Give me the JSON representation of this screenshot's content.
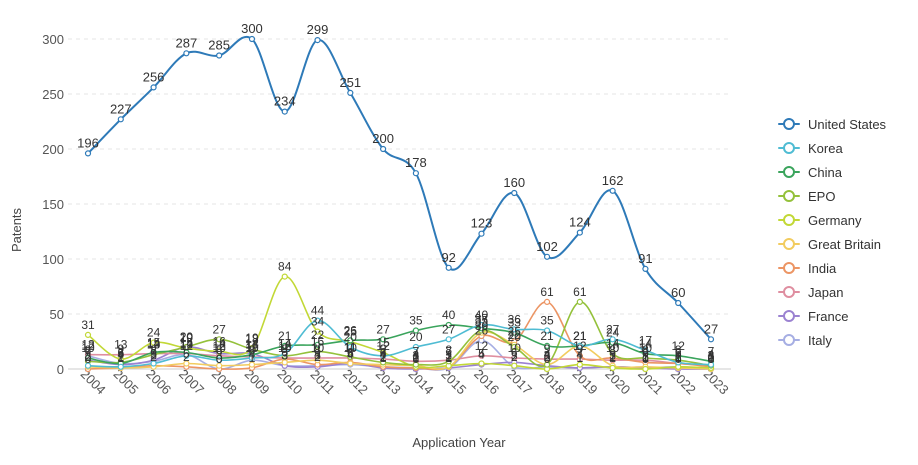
{
  "chart_data": {
    "type": "line",
    "xlabel": "Application Year",
    "ylabel": "Patents",
    "ylim": [
      0,
      300
    ],
    "yticks": [
      0,
      50,
      100,
      150,
      200,
      250,
      300
    ],
    "grid": "horizontal dashed",
    "legend_position": "right",
    "categories": [
      "2004",
      "2005",
      "2006",
      "2007",
      "2008",
      "2009",
      "2010",
      "2011",
      "2012",
      "2013",
      "2014",
      "2015",
      "2016",
      "2017",
      "2018",
      "2019",
      "2020",
      "2021",
      "2022",
      "2023"
    ],
    "series": [
      {
        "name": "United States",
        "color": "#2e7ab8",
        "values": [
          196,
          227,
          256,
          287,
          285,
          300,
          234,
          299,
          251,
          200,
          178,
          92,
          123,
          160,
          102,
          124,
          162,
          91,
          60,
          27
        ]
      },
      {
        "name": "Korea",
        "color": "#4fbcd3",
        "values": [
          3,
          2,
          5,
          12,
          8,
          10,
          14,
          44,
          20,
          12,
          20,
          27,
          40,
          36,
          35,
          21,
          27,
          17,
          6,
          4
        ]
      },
      {
        "name": "China",
        "color": "#3aa45c",
        "values": [
          10,
          5,
          15,
          15,
          10,
          13,
          21,
          22,
          26,
          27,
          35,
          40,
          37,
          33,
          21,
          21,
          24,
          14,
          12,
          7
        ]
      },
      {
        "name": "EPO",
        "color": "#94c13b",
        "values": [
          7,
          6,
          13,
          20,
          27,
          18,
          12,
          16,
          11,
          6,
          4,
          7,
          35,
          20,
          4,
          61,
          14,
          10,
          8,
          3
        ]
      },
      {
        "name": "Germany",
        "color": "#c2d836",
        "values": [
          31,
          9,
          24,
          19,
          16,
          19,
          84,
          34,
          25,
          15,
          2,
          3,
          5,
          3,
          0,
          4,
          1,
          0,
          2,
          1
        ]
      },
      {
        "name": "Great Britain",
        "color": "#f2cc5f",
        "values": [
          2,
          1,
          2,
          5,
          3,
          4,
          6,
          8,
          5,
          4,
          3,
          2,
          33,
          22,
          4,
          21,
          3,
          2,
          1,
          0
        ]
      },
      {
        "name": "India",
        "color": "#ec9564",
        "values": [
          0,
          1,
          3,
          2,
          0,
          1,
          9,
          4,
          6,
          2,
          1,
          2,
          30,
          25,
          61,
          12,
          10,
          6,
          5,
          2
        ]
      },
      {
        "name": "Japan",
        "color": "#df8ea0",
        "values": [
          13,
          13,
          14,
          14,
          12,
          11,
          10,
          10,
          10,
          9,
          7,
          8,
          12,
          10,
          9,
          9,
          8,
          8,
          5,
          3
        ]
      },
      {
        "name": "France",
        "color": "#9b82d1",
        "values": [
          8,
          4,
          8,
          20,
          14,
          14,
          3,
          2,
          5,
          1,
          0,
          1,
          4,
          6,
          3,
          1,
          2,
          1,
          0,
          0
        ]
      },
      {
        "name": "Italy",
        "color": "#a6aee3",
        "values": [
          12,
          5,
          7,
          13,
          0,
          8,
          3,
          3,
          4,
          2,
          1,
          1,
          26,
          2,
          2,
          1,
          2,
          1,
          2,
          0
        ]
      }
    ],
    "data_labels": [
      {
        "text": "196"
      },
      {
        "text": "227"
      },
      {
        "text": "256"
      },
      {
        "text": "287"
      },
      {
        "text": "285"
      },
      {
        "text": "300"
      },
      {
        "text": "234"
      },
      {
        "text": "299"
      },
      {
        "text": "251"
      },
      {
        "text": "200"
      },
      {
        "text": "178"
      },
      {
        "text": "92"
      },
      {
        "text": "123"
      },
      {
        "text": "160"
      },
      {
        "text": "102"
      },
      {
        "text": "124"
      },
      {
        "text": "162"
      },
      {
        "text": "91"
      },
      {
        "text": "60"
      },
      {
        "text": "27"
      }
    ]
  }
}
